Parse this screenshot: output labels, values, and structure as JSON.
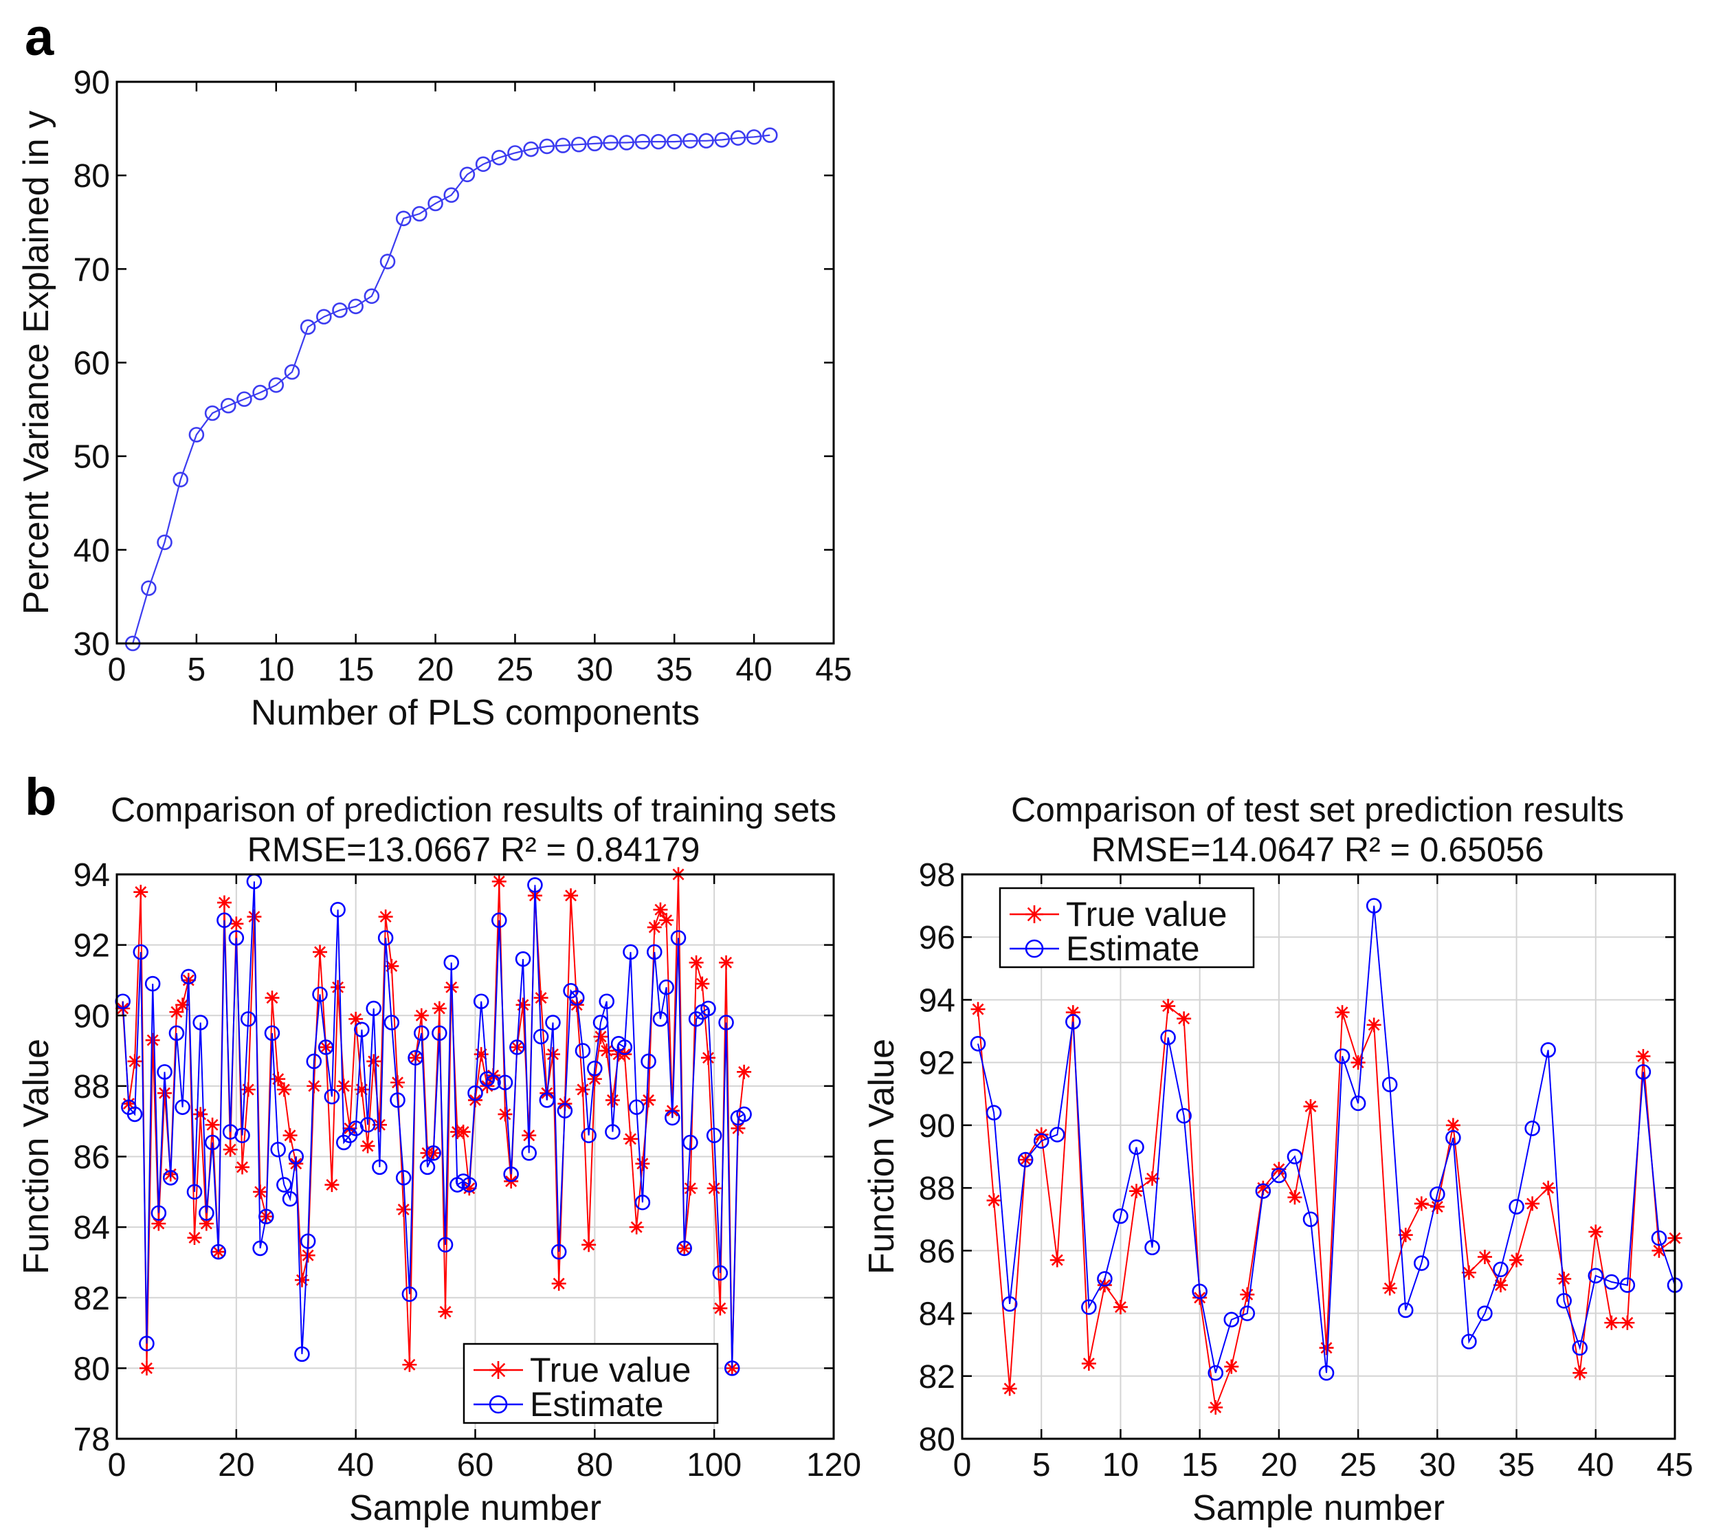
{
  "panels": {
    "a": "a",
    "b": "b"
  },
  "colors": {
    "true": "#ff0000",
    "estimate": "#0000ff",
    "a_line": "#3c3cf0",
    "grid": "#d4d4d4"
  },
  "chart_data": [
    {
      "id": "a",
      "type": "line",
      "title": "",
      "xlabel": "Number of PLS components",
      "ylabel": "Percent Variance Explained in y",
      "xlim": [
        0,
        45
      ],
      "ylim": [
        30,
        90
      ],
      "xticks": [
        0,
        5,
        10,
        15,
        20,
        25,
        30,
        35,
        40,
        45
      ],
      "yticks": [
        30,
        40,
        50,
        60,
        70,
        80,
        90
      ],
      "grid": false,
      "series": [
        {
          "name": "Percent Variance Explained",
          "marker": "circle",
          "x": [
            1,
            2,
            3,
            4,
            5,
            6,
            7,
            8,
            9,
            10,
            11,
            12,
            13,
            14,
            15,
            16,
            17,
            18,
            19,
            20,
            21,
            22,
            23,
            24,
            25,
            26,
            27,
            28,
            29,
            30,
            31,
            32,
            33,
            34,
            35,
            36,
            37,
            38,
            39,
            40,
            41
          ],
          "values": [
            30.0,
            35.9,
            40.8,
            47.5,
            52.3,
            54.6,
            55.4,
            56.1,
            56.8,
            57.6,
            59.0,
            63.8,
            64.9,
            65.6,
            66.0,
            67.1,
            70.8,
            75.4,
            75.9,
            77.0,
            77.9,
            80.1,
            81.2,
            81.9,
            82.4,
            82.8,
            83.1,
            83.2,
            83.3,
            83.4,
            83.5,
            83.5,
            83.6,
            83.6,
            83.6,
            83.7,
            83.7,
            83.8,
            84.0,
            84.1,
            84.3
          ]
        }
      ]
    },
    {
      "id": "b1",
      "type": "line",
      "title": "Comparison of prediction results of training sets",
      "subtitle": "RMSE=13.0667 R² = 0.84179",
      "xlabel": "Sample number",
      "ylabel": "Function Value",
      "xlim": [
        0,
        120
      ],
      "ylim": [
        78,
        94
      ],
      "xticks": [
        0,
        20,
        40,
        60,
        80,
        100,
        120
      ],
      "yticks": [
        78,
        80,
        82,
        84,
        86,
        88,
        90,
        92,
        94
      ],
      "grid": true,
      "legend": "bottom-center",
      "series": [
        {
          "name": "True value",
          "marker": "star",
          "values": [
            90.2,
            87.5,
            88.7,
            93.5,
            80.0,
            89.3,
            84.1,
            87.8,
            85.5,
            90.1,
            90.3,
            91.0,
            83.7,
            87.2,
            84.1,
            86.9,
            83.3,
            93.2,
            86.2,
            92.6,
            85.7,
            87.9,
            92.8,
            85.0,
            84.3,
            90.5,
            88.2,
            87.9,
            86.6,
            85.8,
            82.5,
            83.2,
            88.0,
            91.8,
            89.1,
            85.2,
            90.8,
            88.0,
            86.8,
            89.9,
            87.9,
            86.3,
            88.7,
            86.9,
            92.8,
            91.4,
            88.1,
            84.5,
            80.1,
            88.8,
            90.0,
            86.1,
            86.1,
            90.2,
            81.6,
            90.8,
            86.7,
            86.7,
            85.1,
            87.6,
            88.9,
            88.0,
            88.3,
            93.8,
            87.2,
            85.3,
            89.1,
            90.3,
            86.6,
            93.4,
            90.5,
            87.8,
            88.9,
            82.4,
            87.5,
            93.4,
            90.3,
            87.9,
            83.5,
            88.2,
            89.4,
            89.0,
            87.6,
            88.9,
            88.9,
            86.5,
            84.0,
            85.8,
            87.6,
            92.5,
            93.0,
            92.7,
            87.3,
            94.0,
            83.4,
            85.1,
            91.5,
            90.9,
            88.8,
            85.1,
            81.7,
            91.5,
            80.0,
            86.8,
            88.4
          ]
        },
        {
          "name": "Estimate",
          "marker": "circle",
          "values": [
            90.4,
            87.4,
            87.2,
            91.8,
            80.7,
            90.9,
            84.4,
            88.4,
            85.4,
            89.5,
            87.4,
            91.1,
            85.0,
            89.8,
            84.4,
            86.4,
            83.3,
            92.7,
            86.7,
            92.2,
            86.6,
            89.9,
            93.8,
            83.4,
            84.3,
            89.5,
            86.2,
            85.2,
            84.8,
            86.0,
            80.4,
            83.6,
            88.7,
            90.6,
            89.1,
            87.7,
            93.0,
            86.4,
            86.6,
            86.8,
            89.6,
            86.9,
            90.2,
            85.7,
            92.2,
            89.8,
            87.6,
            85.4,
            82.1,
            88.8,
            89.5,
            85.7,
            86.1,
            89.5,
            83.5,
            91.5,
            85.2,
            85.3,
            85.2,
            87.8,
            90.4,
            88.2,
            88.1,
            92.7,
            88.1,
            85.5,
            89.1,
            91.6,
            86.1,
            93.7,
            89.4,
            87.6,
            89.8,
            83.3,
            87.3,
            90.7,
            90.5,
            89.0,
            86.6,
            88.5,
            89.8,
            90.4,
            86.7,
            89.2,
            89.1,
            91.8,
            87.4,
            84.7,
            88.7,
            91.8,
            89.9,
            90.8,
            87.1,
            92.2,
            83.4,
            86.4,
            89.9,
            90.1,
            90.2,
            86.6,
            82.7,
            89.8,
            80.0,
            87.1,
            87.2
          ]
        }
      ]
    },
    {
      "id": "b2",
      "type": "line",
      "title": "Comparison of test set prediction results",
      "subtitle": "RMSE=14.0647 R² = 0.65056",
      "xlabel": "Sample number",
      "ylabel": "Function Value",
      "xlim": [
        0,
        45
      ],
      "ylim": [
        80,
        98
      ],
      "xticks": [
        0,
        5,
        10,
        15,
        20,
        25,
        30,
        35,
        40,
        45
      ],
      "yticks": [
        80,
        82,
        84,
        86,
        88,
        90,
        92,
        94,
        96,
        98
      ],
      "grid": true,
      "legend": "top-left",
      "series": [
        {
          "name": "True value",
          "marker": "star",
          "values": [
            93.7,
            87.6,
            81.6,
            88.9,
            89.7,
            85.7,
            93.6,
            82.4,
            84.9,
            84.2,
            87.9,
            88.3,
            93.8,
            93.4,
            84.5,
            81.0,
            82.3,
            84.6,
            88.0,
            88.6,
            87.7,
            90.6,
            82.9,
            93.6,
            92.0,
            93.2,
            84.8,
            86.5,
            87.5,
            87.4,
            90.0,
            85.3,
            85.8,
            84.9,
            85.7,
            87.5,
            88.0,
            85.1,
            82.1,
            86.6,
            83.7,
            83.7,
            92.2,
            86.0,
            86.4
          ]
        },
        {
          "name": "Estimate",
          "marker": "circle",
          "values": [
            92.6,
            90.4,
            84.3,
            88.9,
            89.5,
            89.7,
            93.3,
            84.2,
            85.1,
            87.1,
            89.3,
            86.1,
            92.8,
            90.3,
            84.7,
            82.1,
            83.8,
            84.0,
            87.9,
            88.4,
            89.0,
            87.0,
            82.1,
            92.2,
            90.7,
            97.0,
            91.3,
            84.1,
            85.6,
            87.8,
            89.6,
            83.1,
            84.0,
            85.4,
            87.4,
            89.9,
            92.4,
            84.4,
            82.9,
            85.2,
            85.0,
            84.9,
            91.7,
            86.4,
            84.9
          ]
        }
      ]
    }
  ]
}
